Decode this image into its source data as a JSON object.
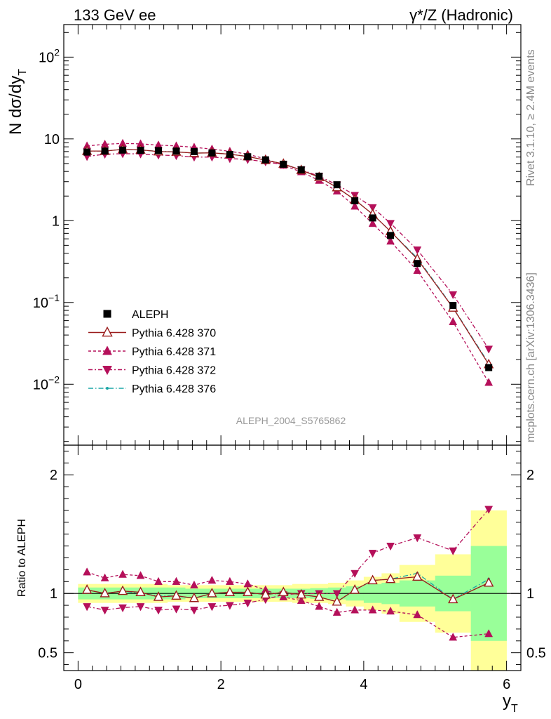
{
  "header": {
    "left": "133 GeV ee",
    "right": "γ*/Z (Hadronic)"
  },
  "side_labels": {
    "top": "Rivet 3.1.10, ≥ 2.4M events",
    "bottom": "mcplots.cern.ch [arXiv:1306.3436]"
  },
  "watermark": "ALEPH_2004_S5765862",
  "colors": {
    "data": "#000000",
    "p370": "#9a1b1b",
    "p371": "#b5105a",
    "p372": "#b5105a",
    "p376": "#1aa5a5",
    "band_inner": "#99ff99",
    "band_outer": "#ffff99"
  },
  "chart_data": [
    {
      "type": "scatter",
      "name": "main",
      "ylabel": "N dσ/dy_T",
      "xlim": [
        -0.2,
        6.2
      ],
      "ylim": [
        0.0018,
        250
      ],
      "yscale": "log",
      "ytick_labels": [
        "10^-2",
        "10^-1",
        "1",
        "10",
        "10^2"
      ],
      "legend_position": "left-middle",
      "x": [
        0.125,
        0.375,
        0.625,
        0.875,
        1.125,
        1.375,
        1.625,
        1.875,
        2.125,
        2.375,
        2.625,
        2.875,
        3.125,
        3.375,
        3.625,
        3.875,
        4.125,
        4.375,
        4.75,
        5.25,
        5.75
      ],
      "series": [
        {
          "name": "ALEPH",
          "marker": "square",
          "values": [
            6.9,
            7.1,
            7.3,
            7.25,
            7.2,
            7.1,
            7.0,
            6.75,
            6.45,
            6.05,
            5.55,
            4.9,
            4.2,
            3.5,
            2.75,
            1.75,
            1.08,
            0.66,
            0.3,
            0.092,
            0.016
          ]
        },
        {
          "name": "Pythia 6.428 370",
          "marker": "open-triangle-up",
          "values": [
            7.1,
            7.1,
            7.45,
            7.35,
            7.0,
            6.95,
            6.7,
            6.75,
            6.5,
            6.1,
            5.5,
            4.95,
            4.15,
            3.4,
            2.55,
            1.8,
            1.2,
            0.74,
            0.34,
            0.086,
            0.0175
          ]
        },
        {
          "name": "Pythia 6.428 371",
          "marker": "triangle-up",
          "values": [
            8.2,
            8.6,
            8.8,
            8.7,
            8.4,
            8.2,
            7.9,
            7.5,
            7.05,
            6.5,
            5.7,
            4.75,
            3.95,
            3.1,
            2.3,
            1.5,
            0.92,
            0.56,
            0.245,
            0.058,
            0.0105
          ]
        },
        {
          "name": "Pythia 6.428 372",
          "marker": "triangle-down",
          "values": [
            6.1,
            6.5,
            6.6,
            6.55,
            6.35,
            6.25,
            6.0,
            6.0,
            5.75,
            5.6,
            5.25,
            4.85,
            4.2,
            3.5,
            2.75,
            2.05,
            1.45,
            0.93,
            0.44,
            0.125,
            0.027
          ]
        },
        {
          "name": "Pythia 6.428 376",
          "marker": "dot",
          "values": [
            7.1,
            7.1,
            7.45,
            7.3,
            7.05,
            6.95,
            6.7,
            6.75,
            6.5,
            6.1,
            5.5,
            4.95,
            4.15,
            3.4,
            2.55,
            1.8,
            1.2,
            0.74,
            0.35,
            0.087,
            0.018
          ]
        }
      ]
    },
    {
      "type": "scatter",
      "name": "ratio",
      "ylabel": "Ratio to ALEPH",
      "xlabel": "y_T",
      "xlim": [
        -0.2,
        6.2
      ],
      "ylim": [
        0.35,
        2.25
      ],
      "ytick_labels": [
        "0.5",
        "1",
        "2"
      ],
      "xtick_labels": [
        "0",
        "2",
        "4",
        "6"
      ],
      "bin_edges": [
        0,
        0.25,
        0.5,
        0.75,
        1.0,
        1.25,
        1.5,
        1.75,
        2.0,
        2.25,
        2.5,
        2.75,
        3.0,
        3.25,
        3.5,
        3.75,
        4.0,
        4.25,
        4.5,
        5.0,
        5.5,
        6.0
      ],
      "band_inner": [
        0.05,
        0.05,
        0.05,
        0.05,
        0.05,
        0.05,
        0.04,
        0.04,
        0.04,
        0.04,
        0.04,
        0.04,
        0.04,
        0.045,
        0.05,
        0.06,
        0.08,
        0.09,
        0.11,
        0.15,
        0.4
      ],
      "band_outer": [
        0.08,
        0.08,
        0.08,
        0.08,
        0.08,
        0.07,
        0.07,
        0.07,
        0.07,
        0.07,
        0.07,
        0.07,
        0.08,
        0.08,
        0.09,
        0.11,
        0.14,
        0.17,
        0.24,
        0.33,
        0.7
      ],
      "x": [
        0.125,
        0.375,
        0.625,
        0.875,
        1.125,
        1.375,
        1.625,
        1.875,
        2.125,
        2.375,
        2.625,
        2.875,
        3.125,
        3.375,
        3.625,
        3.875,
        4.125,
        4.375,
        4.75,
        5.25,
        5.75
      ],
      "series": [
        {
          "name": "Pythia 6.428 370",
          "values": [
            1.03,
            1.0,
            1.02,
            1.01,
            0.97,
            0.98,
            0.96,
            1.0,
            1.01,
            1.01,
            0.99,
            1.01,
            0.99,
            0.97,
            0.93,
            1.03,
            1.11,
            1.12,
            1.14,
            0.95,
            1.09
          ]
        },
        {
          "name": "Pythia 6.428 371",
          "values": [
            1.18,
            1.13,
            1.16,
            1.15,
            1.1,
            1.1,
            1.07,
            1.11,
            1.1,
            1.08,
            1.03,
            0.97,
            0.94,
            0.89,
            0.84,
            0.86,
            0.86,
            0.85,
            0.82,
            0.63,
            0.66
          ]
        },
        {
          "name": "Pythia 6.428 372",
          "values": [
            0.89,
            0.86,
            0.88,
            0.89,
            0.86,
            0.87,
            0.86,
            0.89,
            0.9,
            0.92,
            0.95,
            0.99,
            1.0,
            1.0,
            1.0,
            1.17,
            1.34,
            1.4,
            1.47,
            1.36,
            1.71
          ]
        },
        {
          "name": "Pythia 6.428 376",
          "values": [
            1.03,
            1.0,
            1.02,
            1.0,
            0.98,
            0.98,
            0.96,
            1.0,
            1.01,
            1.01,
            0.99,
            1.01,
            0.99,
            0.97,
            0.93,
            1.03,
            1.11,
            1.12,
            1.17,
            0.95,
            1.12
          ]
        }
      ]
    }
  ]
}
